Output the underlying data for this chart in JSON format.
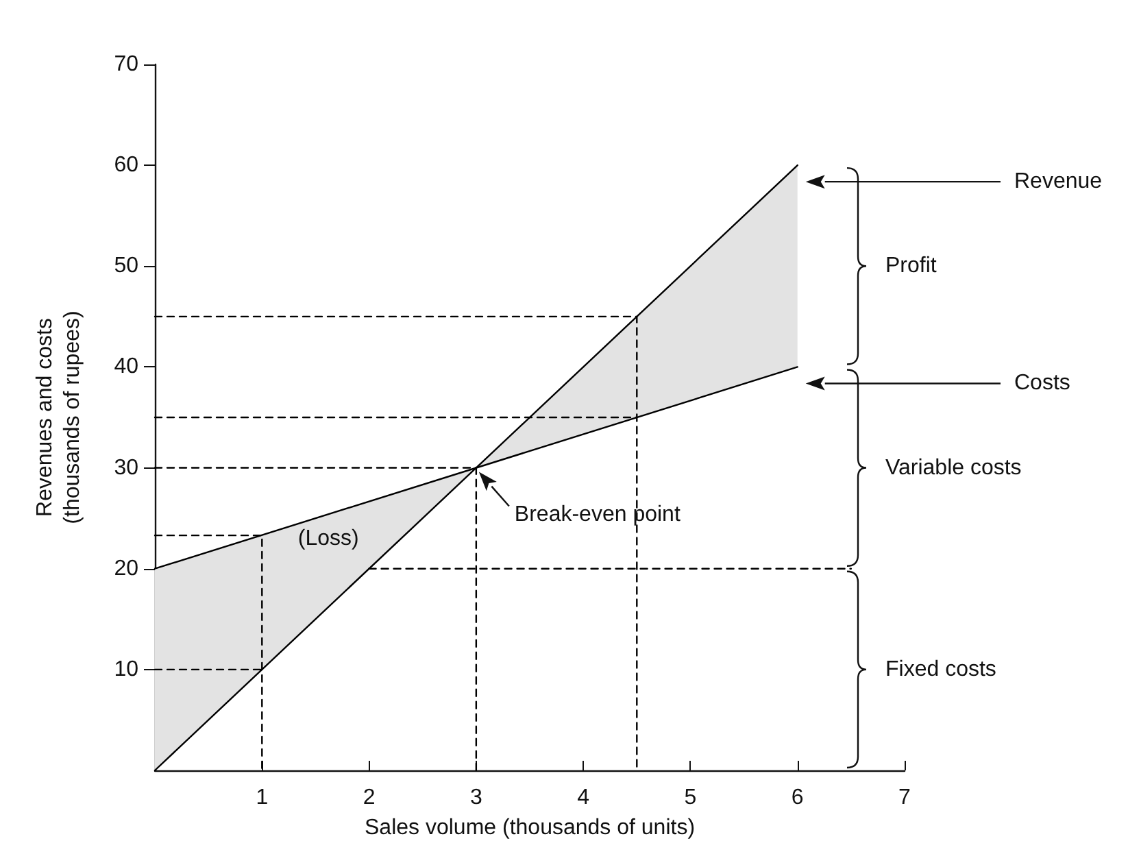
{
  "chart_data": {
    "type": "line",
    "xlabel": "Sales volume (thousands of units)",
    "ylabel": "Revenues and costs\n(thousands of rupees)",
    "xlim": [
      0,
      7
    ],
    "xticks": [
      1,
      2,
      3,
      4,
      5,
      6,
      7
    ],
    "ylim": [
      0,
      70
    ],
    "yticks": [
      10,
      20,
      30,
      40,
      50,
      60,
      70
    ],
    "grid": false,
    "legend": false,
    "marker": "none",
    "line_style": "solid",
    "series": [
      {
        "name": "Revenue",
        "color": "#000000",
        "x": [
          0,
          6
        ],
        "values": [
          0,
          60
        ]
      },
      {
        "name": "Costs",
        "color": "#000000",
        "x": [
          0,
          6
        ],
        "values": [
          20,
          40
        ]
      },
      {
        "color": "#000000",
        "line_style": "dashed",
        "x": [
          0,
          1,
          1
        ],
        "values": [
          23.3,
          23.3,
          0
        ]
      },
      {
        "color": "#000000",
        "line_style": "dashed",
        "x": [
          0,
          1
        ],
        "values": [
          10,
          10
        ]
      },
      {
        "color": "#000000",
        "line_style": "dashed",
        "x": [
          0,
          3,
          3
        ],
        "values": [
          30,
          30,
          0
        ]
      },
      {
        "color": "#000000",
        "line_style": "dashed",
        "x": [
          0,
          4.5,
          4.5
        ],
        "values": [
          45,
          45,
          0
        ]
      },
      {
        "color": "#000000",
        "line_style": "dashed",
        "x": [
          0,
          4.5
        ],
        "values": [
          35,
          35
        ]
      },
      {
        "color": "#000000",
        "line_style": "dashed",
        "x": [
          2,
          6.5
        ],
        "values": [
          20,
          20
        ]
      }
    ],
    "annotations": [
      "Profit",
      "Variable costs",
      "Fixed costs",
      "(Loss)",
      {
        "text": "Break-even point",
        "x": 3,
        "y": 30
      }
    ]
  }
}
